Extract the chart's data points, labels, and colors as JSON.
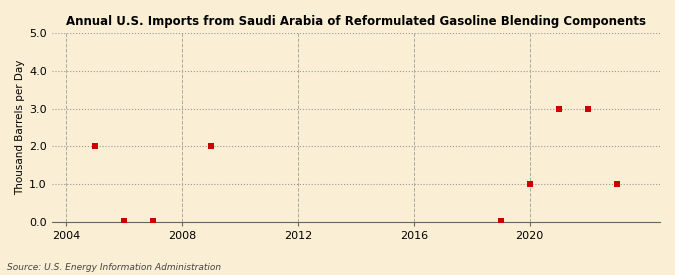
{
  "title": "Annual U.S. Imports from Saudi Arabia of Reformulated Gasoline Blending Components",
  "ylabel": "Thousand Barrels per Day",
  "source": "Source: U.S. Energy Information Administration",
  "background_color": "#faefd4",
  "x_data": [
    2005,
    2006,
    2007,
    2009,
    2019,
    2020,
    2021,
    2022,
    2023
  ],
  "y_data": [
    2.0,
    0.03,
    0.03,
    2.0,
    0.03,
    1.0,
    3.0,
    3.0,
    1.0
  ],
  "xlim": [
    2003.5,
    2024.5
  ],
  "ylim": [
    0.0,
    5.0
  ],
  "yticks": [
    0.0,
    1.0,
    2.0,
    3.0,
    4.0,
    5.0
  ],
  "xticks": [
    2004,
    2008,
    2012,
    2016,
    2020
  ],
  "marker_color": "#cc0000",
  "marker_size": 4,
  "hgrid_color": "#999999",
  "vgrid_color": "#aaaaaa",
  "vgrid_positions": [
    2004,
    2008,
    2012,
    2016,
    2020
  ]
}
